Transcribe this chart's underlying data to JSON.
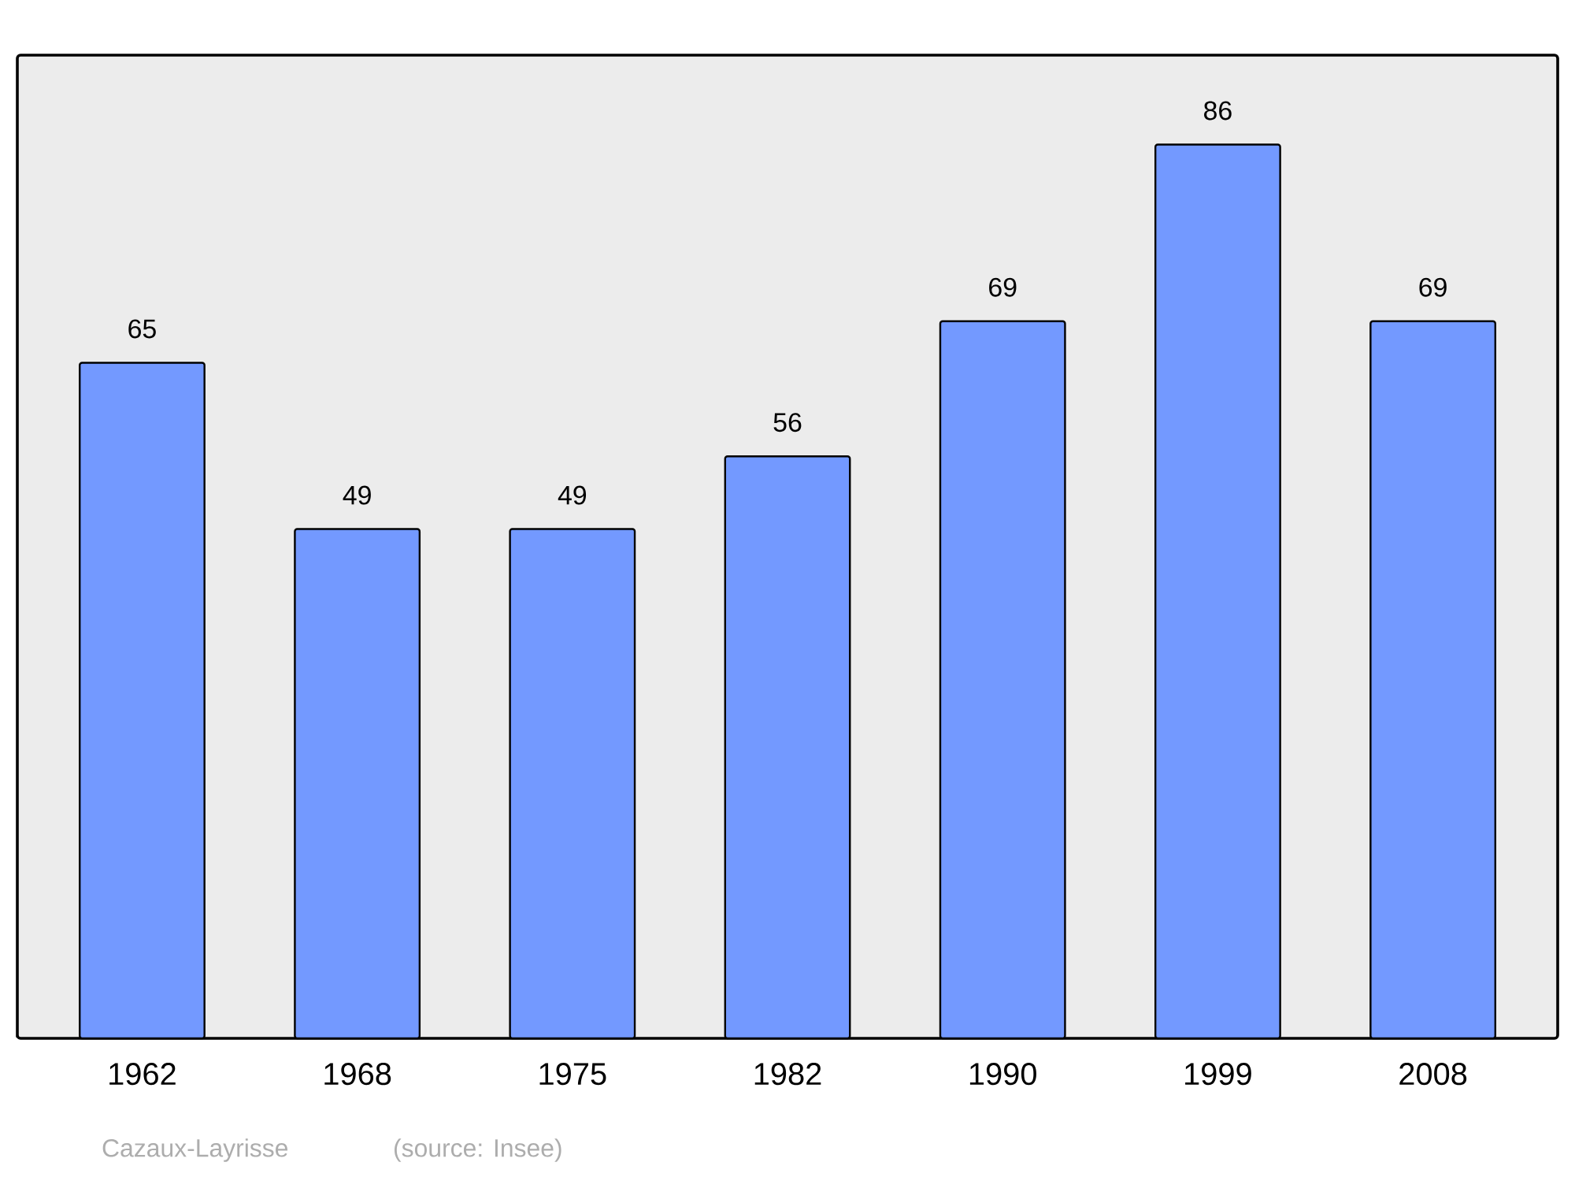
{
  "chart_data": {
    "type": "bar",
    "categories": [
      "1962",
      "1968",
      "1975",
      "1982",
      "1990",
      "1999",
      "2008"
    ],
    "values": [
      65,
      49,
      49,
      56,
      69,
      86,
      69
    ],
    "color": "#7399ff",
    "data_labels": true,
    "annotations": [
      "Cazaux-Layrisse",
      "(source: Insee)"
    ]
  }
}
